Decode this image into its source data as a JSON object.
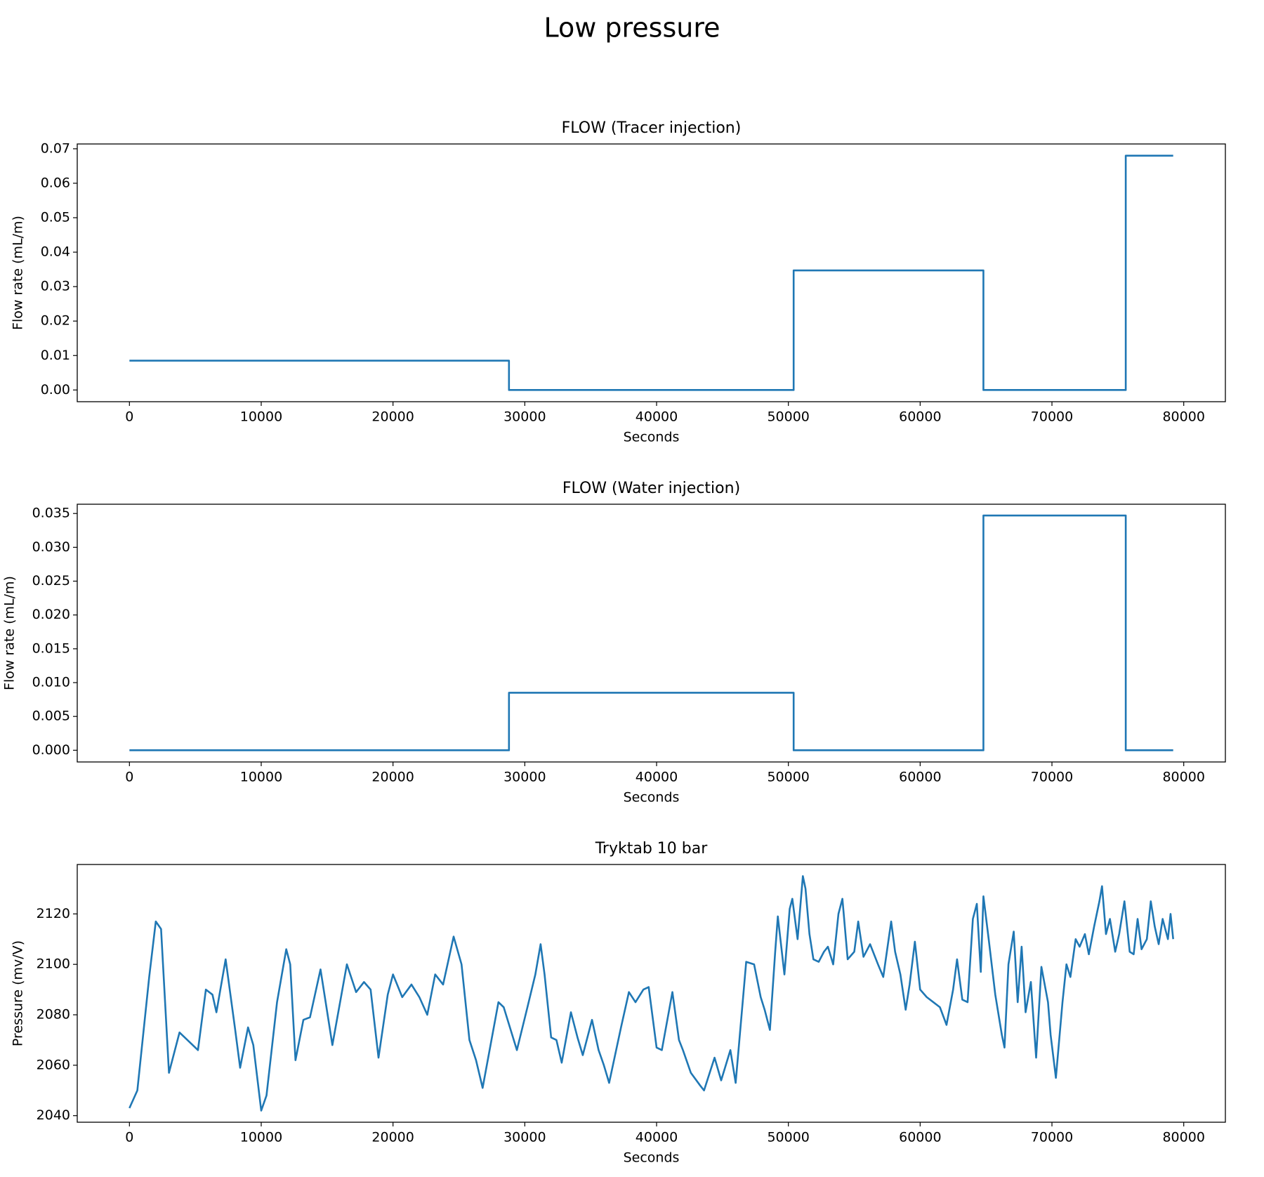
{
  "title": "Low pressure",
  "chart_data": [
    {
      "type": "line",
      "title": "FLOW (Tracer injection)",
      "xlabel": "Seconds",
      "ylabel": "Flow rate (mL/m)",
      "color": "#1f77b4",
      "x": [
        0,
        28800,
        28800,
        50400,
        50400,
        64800,
        64800,
        75600,
        75600,
        79200
      ],
      "values": [
        0.0085,
        0.0085,
        0,
        0,
        0.0347,
        0.0347,
        0,
        0,
        0.068,
        0.068
      ],
      "xlim": [
        -3960,
        83160
      ],
      "ylim": [
        -0.0034,
        0.0714
      ],
      "xticks": [
        0,
        10000,
        20000,
        30000,
        40000,
        50000,
        60000,
        70000,
        80000
      ],
      "yticks": [
        {
          "value": 0,
          "label": "0.00"
        },
        0.01,
        0.02,
        0.03,
        0.04,
        0.05,
        0.06,
        0.07
      ]
    },
    {
      "type": "line",
      "title": "FLOW (Water injection)",
      "xlabel": "Seconds",
      "ylabel": "Flow rate (mL/m)",
      "color": "#1f77b4",
      "x": [
        0,
        28800,
        28800,
        50400,
        50400,
        64800,
        64800,
        75600,
        75600,
        79200
      ],
      "values": [
        0,
        0,
        0.0085,
        0.0085,
        0,
        0,
        0.0347,
        0.0347,
        0,
        0
      ],
      "xlim": [
        -3960,
        83160
      ],
      "ylim": [
        -0.00173,
        0.03637
      ],
      "xticks": [
        0,
        10000,
        20000,
        30000,
        40000,
        50000,
        60000,
        70000,
        80000
      ],
      "yticks": [
        {
          "value": 0,
          "label": "0.000"
        },
        0.005,
        {
          "value": 0.01,
          "label": "0.010"
        },
        0.015,
        {
          "value": 0.02,
          "label": "0.020"
        },
        0.025,
        {
          "value": 0.03,
          "label": "0.030"
        },
        0.035
      ]
    },
    {
      "type": "line",
      "title": "Tryktab 10 bar",
      "xlabel": "Seconds",
      "ylabel": "Pressure (mv/V)",
      "color": "#1f77b4",
      "x": [
        0,
        600,
        1500,
        2000,
        2400,
        3000,
        3800,
        4400,
        5200,
        5800,
        6300,
        6600,
        7300,
        8000,
        8400,
        9000,
        9400,
        10000,
        10400,
        11200,
        11900,
        12200,
        12600,
        13200,
        13700,
        14500,
        15400,
        16500,
        17200,
        17800,
        18300,
        18900,
        19600,
        20000,
        20700,
        21400,
        22000,
        22600,
        23200,
        23800,
        24600,
        25200,
        25800,
        26300,
        26800,
        27400,
        28000,
        28400,
        29400,
        30200,
        30800,
        31200,
        31500,
        32000,
        32400,
        32800,
        33500,
        34000,
        34400,
        35100,
        35600,
        36000,
        36400,
        37300,
        37900,
        38400,
        39000,
        39400,
        40000,
        40400,
        41200,
        41700,
        42000,
        42600,
        43300,
        43600,
        44400,
        44900,
        45600,
        46000,
        46800,
        47400,
        47900,
        48200,
        48600,
        49000,
        49200,
        49700,
        50100,
        50300,
        50700,
        51100,
        51300,
        51600,
        51900,
        52300,
        52700,
        53000,
        53400,
        53800,
        54100,
        54500,
        55000,
        55300,
        55700,
        56200,
        56800,
        57200,
        57800,
        58100,
        58500,
        58900,
        59200,
        59600,
        60000,
        60500,
        61000,
        61500,
        62000,
        62500,
        62800,
        63200,
        63600,
        64000,
        64300,
        64600,
        64800,
        65200,
        65700,
        66200,
        66400,
        66700,
        67100,
        67400,
        67700,
        68000,
        68400,
        68800,
        69200,
        69700,
        69900,
        70300,
        70800,
        71100,
        71400,
        71800,
        72100,
        72500,
        72800,
        73200,
        73600,
        73800,
        74100,
        74400,
        74800,
        75100,
        75500,
        75900,
        76200,
        76500,
        76800,
        77200,
        77500,
        77800,
        78100,
        78400,
        78800,
        79000,
        79200
      ],
      "values": [
        2043,
        2050,
        2095,
        2117,
        2114,
        2057,
        2073,
        2070,
        2066,
        2090,
        2088,
        2081,
        2102,
        2075,
        2059,
        2075,
        2068,
        2042,
        2048,
        2085,
        2106,
        2100,
        2062,
        2078,
        2079,
        2098,
        2068,
        2100,
        2089,
        2093,
        2090,
        2063,
        2088,
        2096,
        2087,
        2092,
        2087,
        2080,
        2096,
        2092,
        2111,
        2100,
        2070,
        2062,
        2051,
        2068,
        2085,
        2083,
        2066,
        2083,
        2096,
        2108,
        2096,
        2071,
        2070,
        2061,
        2081,
        2071,
        2064,
        2078,
        2066,
        2060,
        2053,
        2075,
        2089,
        2085,
        2090,
        2091,
        2067,
        2066,
        2089,
        2070,
        2066,
        2057,
        2052,
        2050,
        2063,
        2054,
        2066,
        2053,
        2101,
        2100,
        2087,
        2082,
        2074,
        2105,
        2119,
        2096,
        2122,
        2126,
        2110,
        2135,
        2130,
        2112,
        2102,
        2101,
        2105,
        2107,
        2100,
        2120,
        2126,
        2102,
        2105,
        2117,
        2103,
        2108,
        2100,
        2095,
        2117,
        2105,
        2096,
        2082,
        2092,
        2109,
        2090,
        2087,
        2085,
        2083,
        2076,
        2090,
        2102,
        2086,
        2085,
        2118,
        2124,
        2097,
        2127,
        2110,
        2088,
        2072,
        2067,
        2100,
        2113,
        2085,
        2107,
        2081,
        2093,
        2063,
        2099,
        2085,
        2072,
        2055,
        2085,
        2100,
        2095,
        2110,
        2107,
        2112,
        2104,
        2115,
        2125,
        2131,
        2112,
        2118,
        2105,
        2112,
        2125,
        2105,
        2104,
        2118,
        2106,
        2110,
        2125,
        2115,
        2108,
        2118,
        2110,
        2120,
        2110
      ],
      "xlim": [
        -3960,
        83160
      ],
      "ylim": [
        2037.4,
        2139.6
      ],
      "xticks": [
        0,
        10000,
        20000,
        30000,
        40000,
        50000,
        60000,
        70000,
        80000
      ],
      "yticks": [
        2040,
        2060,
        2080,
        2100,
        2120
      ]
    }
  ]
}
